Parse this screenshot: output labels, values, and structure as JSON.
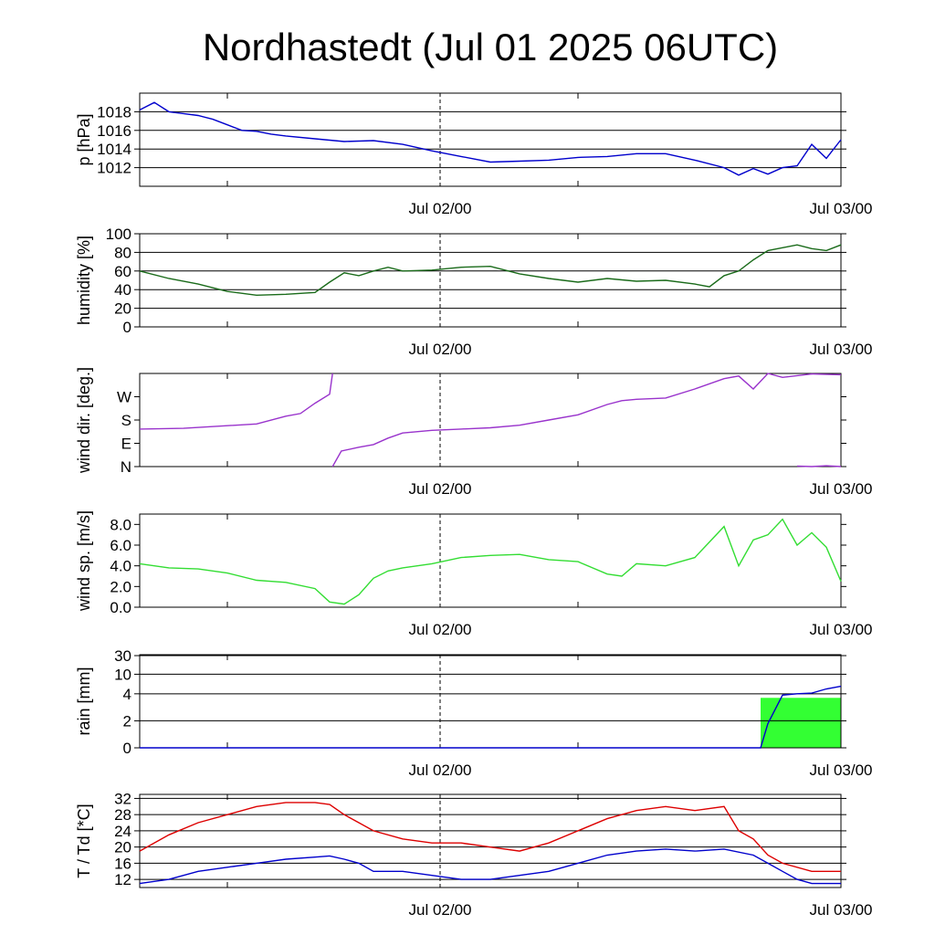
{
  "title": "Nordhastedt (Jul 01 2025 06UTC)",
  "x_labels": [
    "Jul 02/00",
    "Jul 03/00"
  ],
  "chart_data": [
    {
      "type": "line",
      "ylabel": "p [hPa]",
      "ylim": [
        1010,
        1020
      ],
      "yticks": [
        {
          "v": 1012,
          "label": "1012"
        },
        {
          "v": 1014,
          "label": "1014"
        },
        {
          "v": 1016,
          "label": "1016"
        },
        {
          "v": 1018,
          "label": "1018"
        }
      ],
      "grid": true,
      "series": [
        {
          "color": "#0000cc",
          "x": [
            0,
            1,
            2,
            3,
            4,
            5,
            6,
            7,
            8,
            9,
            10,
            12,
            14,
            16,
            18,
            20,
            22,
            24,
            26,
            28,
            30,
            32,
            34,
            36,
            38,
            40,
            41,
            42,
            43,
            44,
            45,
            46,
            47,
            48
          ],
          "y": [
            1018.2,
            1019,
            1018,
            1017.8,
            1017.6,
            1017.2,
            1016.6,
            1016,
            1015.9,
            1015.6,
            1015.4,
            1015.1,
            1014.8,
            1014.9,
            1014.5,
            1013.8,
            1013.2,
            1012.6,
            1012.7,
            1012.8,
            1013.1,
            1013.2,
            1013.5,
            1013.5,
            1012.8,
            1012.0,
            1011.2,
            1011.9,
            1011.3,
            1012.0,
            1012.2,
            1014.5,
            1013.0,
            1015.0
          ]
        }
      ]
    },
    {
      "type": "line",
      "ylabel": "humidity [%]",
      "ylim": [
        0,
        100
      ],
      "yticks": [
        {
          "v": 0,
          "label": "0"
        },
        {
          "v": 20,
          "label": "20"
        },
        {
          "v": 40,
          "label": "40"
        },
        {
          "v": 60,
          "label": "60"
        },
        {
          "v": 80,
          "label": "80"
        },
        {
          "v": 100,
          "label": "100"
        }
      ],
      "grid": true,
      "series": [
        {
          "color": "#1a6b1a",
          "x": [
            0,
            2,
            4,
            6,
            8,
            10,
            12,
            13,
            14,
            15,
            16,
            17,
            18,
            20,
            22,
            24,
            26,
            28,
            30,
            32,
            34,
            36,
            38,
            39,
            40,
            41,
            42,
            43,
            44,
            45,
            46,
            47,
            48
          ],
          "y": [
            60,
            52,
            46,
            38,
            34,
            35,
            37,
            48,
            58,
            55,
            60,
            64,
            60,
            61,
            64,
            65,
            57,
            52,
            48,
            52,
            49,
            50,
            46,
            43,
            55,
            60,
            72,
            82,
            85,
            88,
            84,
            82,
            88
          ]
        }
      ]
    },
    {
      "type": "line",
      "ylabel": "wind dir. [deg.]",
      "ylim": [
        0,
        360
      ],
      "yticks": [
        {
          "v": 0,
          "label": "N"
        },
        {
          "v": 90,
          "label": "E"
        },
        {
          "v": 180,
          "label": "S"
        },
        {
          "v": 270,
          "label": "W"
        }
      ],
      "grid": false,
      "series": [
        {
          "color": "#9933cc",
          "x": [
            0,
            3,
            6,
            8,
            10,
            11,
            12,
            13,
            13.2
          ],
          "y": [
            145,
            148,
            158,
            165,
            195,
            205,
            245,
            280,
            360
          ]
        },
        {
          "color": "#9933cc",
          "x": [
            13.2,
            13.8,
            15,
            16,
            17,
            18,
            20,
            22,
            24,
            26,
            28,
            30,
            32,
            33,
            34,
            36,
            38,
            40,
            41,
            42,
            43,
            44,
            46,
            48
          ],
          "y": [
            0,
            60,
            75,
            85,
            110,
            130,
            140,
            145,
            150,
            160,
            180,
            200,
            240,
            255,
            260,
            265,
            300,
            340,
            350,
            300,
            360,
            345,
            358,
            355
          ]
        },
        {
          "color": "#9933cc",
          "x": [
            45,
            46,
            47,
            48
          ],
          "y": [
            2,
            0,
            3,
            0
          ]
        }
      ]
    },
    {
      "type": "line",
      "ylabel": "wind sp. [m/s]",
      "ylim": [
        0,
        9
      ],
      "yticks": [
        {
          "v": 0,
          "label": "0.0"
        },
        {
          "v": 2,
          "label": "2.0"
        },
        {
          "v": 4,
          "label": "4.0"
        },
        {
          "v": 6,
          "label": "6.0"
        },
        {
          "v": 8,
          "label": "8.0"
        }
      ],
      "grid": false,
      "series": [
        {
          "color": "#33dd33",
          "x": [
            0,
            2,
            4,
            6,
            8,
            10,
            12,
            13,
            14,
            15,
            16,
            17,
            18,
            19,
            20,
            22,
            24,
            26,
            28,
            30,
            32,
            33,
            34,
            36,
            38,
            40,
            41,
            42,
            43,
            44,
            45,
            46,
            47,
            48
          ],
          "y": [
            4.2,
            3.8,
            3.7,
            3.3,
            2.6,
            2.4,
            1.8,
            0.5,
            0.3,
            1.2,
            2.8,
            3.5,
            3.8,
            4.0,
            4.2,
            4.8,
            5.0,
            5.1,
            4.6,
            4.4,
            3.2,
            3.0,
            4.2,
            4.0,
            4.8,
            7.8,
            4.0,
            6.5,
            7.0,
            8.5,
            6.0,
            7.2,
            5.8,
            2.5
          ]
        }
      ]
    },
    {
      "type": "area",
      "ylabel": "rain [mm]",
      "ylim": [
        0,
        30
      ],
      "yscale": "custom",
      "yticks": [
        {
          "v": 0,
          "label": "0"
        },
        {
          "v": 2,
          "label": "2"
        },
        {
          "v": 4,
          "label": "4"
        },
        {
          "v": 10,
          "label": "10"
        },
        {
          "v": 30,
          "label": "30"
        }
      ],
      "grid": true,
      "bars": [
        {
          "color": "#33ff33",
          "x0": 42.5,
          "x1": 48,
          "value": 3.7
        }
      ],
      "series": [
        {
          "color": "#0000cc",
          "x": [
            0,
            42.5,
            43,
            44,
            45,
            46,
            47,
            48
          ],
          "y": [
            0,
            0,
            1.8,
            3.9,
            4.0,
            4.2,
            5.5,
            6.3
          ]
        }
      ]
    },
    {
      "type": "line",
      "ylabel": "T / Td [*C]",
      "ylim": [
        10,
        33
      ],
      "yticks": [
        {
          "v": 12,
          "label": "12"
        },
        {
          "v": 16,
          "label": "16"
        },
        {
          "v": 20,
          "label": "20"
        },
        {
          "v": 24,
          "label": "24"
        },
        {
          "v": 28,
          "label": "28"
        },
        {
          "v": 32,
          "label": "32"
        }
      ],
      "grid": true,
      "series": [
        {
          "color": "#dd0000",
          "x": [
            0,
            2,
            4,
            6,
            8,
            10,
            12,
            13,
            14,
            15,
            16,
            18,
            20,
            22,
            24,
            26,
            28,
            30,
            32,
            34,
            36,
            38,
            40,
            41,
            42,
            43,
            44,
            46,
            48
          ],
          "y": [
            19,
            23,
            26,
            28,
            30,
            31,
            31,
            30.5,
            28,
            26,
            24,
            22,
            21,
            21,
            20,
            19,
            21,
            24,
            27,
            29,
            30,
            29,
            30,
            24,
            22,
            18,
            16,
            14,
            14
          ]
        },
        {
          "color": "#0000cc",
          "x": [
            0,
            2,
            4,
            6,
            8,
            10,
            12,
            13,
            14,
            15,
            16,
            18,
            20,
            22,
            24,
            26,
            28,
            30,
            32,
            34,
            36,
            38,
            40,
            42,
            43,
            44,
            45,
            46,
            48
          ],
          "y": [
            11,
            12,
            14,
            15,
            16,
            17,
            17.5,
            17.8,
            17,
            16,
            14,
            14,
            13,
            12,
            12,
            13,
            14,
            16,
            18,
            19,
            19.5,
            19,
            19.5,
            18,
            16,
            14,
            12,
            11,
            11
          ]
        }
      ]
    }
  ]
}
